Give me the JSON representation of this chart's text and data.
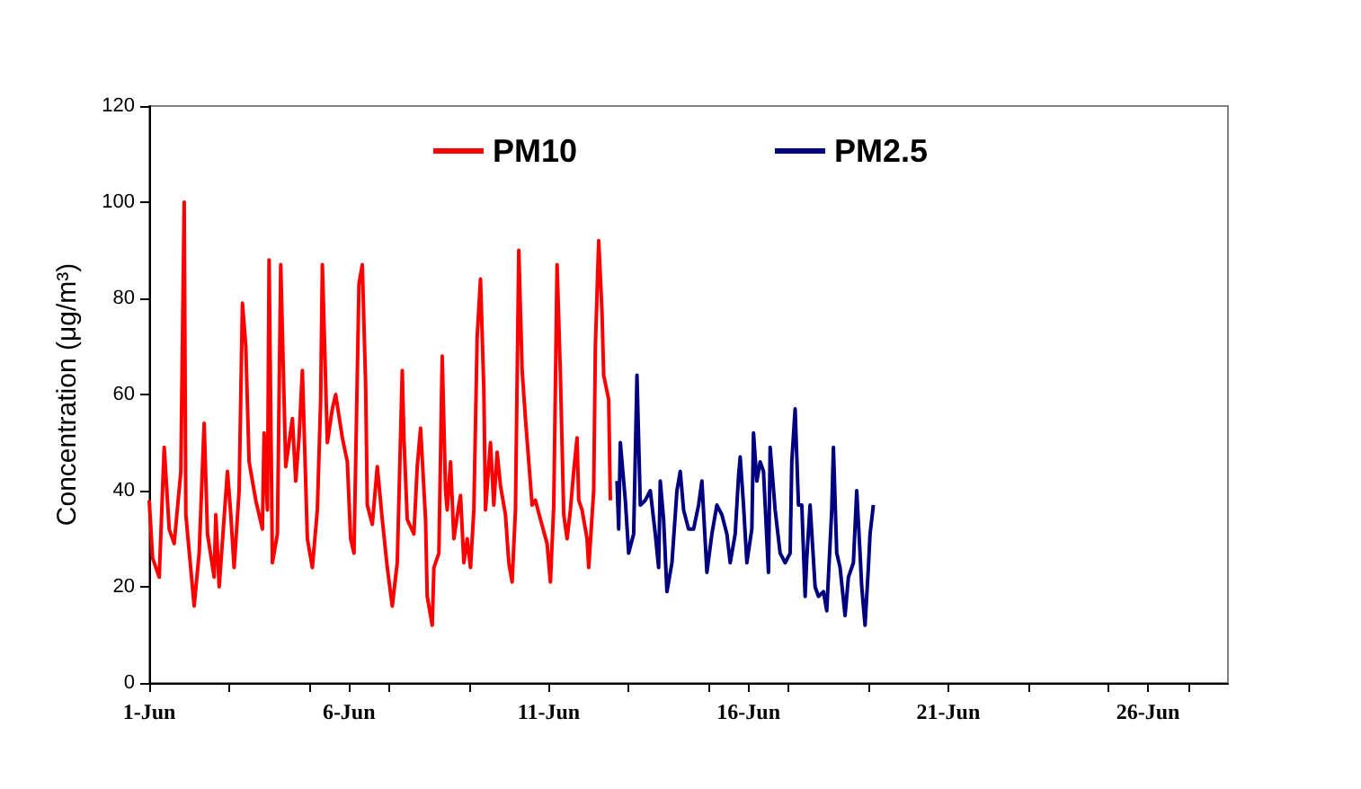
{
  "chart_data": {
    "type": "line",
    "ylabel": "Concentration (μg/m³)",
    "xlim": [
      "--06-01",
      "--06-28"
    ],
    "ylim": [
      0,
      120
    ],
    "yticks": [
      0,
      20,
      40,
      60,
      80,
      100,
      120
    ],
    "xticks": [
      {
        "value": "--06-01",
        "label": "1-Jun"
      },
      {
        "value": "--06-03",
        "label": null
      },
      {
        "value": "--06-05",
        "label": null
      },
      {
        "value": "--06-06",
        "label": "6-Jun"
      },
      {
        "value": "--06-07",
        "label": null
      },
      {
        "value": "--06-09",
        "label": null
      },
      {
        "value": "--06-11",
        "label": "11-Jun"
      },
      {
        "value": "--06-13",
        "label": null
      },
      {
        "value": "--06-15",
        "label": null
      },
      {
        "value": "--06-16",
        "label": "16-Jun"
      },
      {
        "value": "--06-17",
        "label": null
      },
      {
        "value": "--06-19",
        "label": null
      },
      {
        "value": "--06-21",
        "label": "21-Jun"
      },
      {
        "value": "--06-23",
        "label": null
      },
      {
        "value": "--06-25",
        "label": null
      },
      {
        "value": "--06-26",
        "label": "26-Jun"
      },
      {
        "value": "--06-27",
        "label": null
      }
    ],
    "grid": false,
    "legend": "top",
    "marker": "none",
    "line_style": "solid",
    "series": [
      {
        "name": "PM10",
        "color": "#ff0000",
        "x": [
          "--06-01T00:00",
          "--06-01T02:00",
          "--06-01T06:00",
          "--06-01T09:00",
          "--06-01T12:00",
          "--06-01T15:00",
          "--06-01T19:00",
          "--06-01T21:00",
          "--06-01T22:00",
          "--06-02T03:00",
          "--06-02T06:00",
          "--06-02T09:00",
          "--06-02T11:00",
          "--06-02T15:00",
          "--06-02T16:00",
          "--06-02T18:00",
          "--06-02T23:00",
          "--06-03T01:00",
          "--06-03T03:00",
          "--06-03T06:00",
          "--06-03T08:00",
          "--06-03T10:00",
          "--06-03T12:00",
          "--06-03T16:00",
          "--06-03T20:00",
          "--06-03T21:00",
          "--06-03T23:00",
          "--06-04T00:00",
          "--06-04T02:00",
          "--06-04T05:00",
          "--06-04T07:00",
          "--06-04T10:00",
          "--06-04T12:00",
          "--06-04T14:00",
          "--06-04T16:00",
          "--06-04T18:00",
          "--06-04T20:00",
          "--06-04T23:00",
          "--06-05T02:00",
          "--06-05T05:00",
          "--06-05T07:00",
          "--06-05T08:00",
          "--06-05T11:00",
          "--06-05T14:00",
          "--06-05T16:00",
          "--06-05T20:00",
          "--06-05T23:00",
          "--06-06T01:00",
          "--06-06T03:00",
          "--06-06T06:00",
          "--06-06T08:00",
          "--06-06T10:00",
          "--06-06T11:00",
          "--06-06T14:00",
          "--06-06T17:00",
          "--06-06T20:00",
          "--06-06T23:00",
          "--06-07T02:00",
          "--06-07T05:00",
          "--06-07T08:00",
          "--06-07T09:00",
          "--06-07T11:00",
          "--06-07T15:00",
          "--06-07T17:00",
          "--06-07T19:00",
          "--06-07T22:00",
          "--06-07T23:00",
          "--06-08T02:00",
          "--06-08T03:00",
          "--06-08T06:00",
          "--06-08T08:00",
          "--06-08T10:00",
          "--06-08T11:00",
          "--06-08T13:00",
          "--06-08T15:00",
          "--06-08T18:00",
          "--06-08T19:00",
          "--06-08T21:00",
          "--06-08T23:00",
          "--06-09T01:00",
          "--06-09T03:00",
          "--06-09T05:00",
          "--06-09T07:00",
          "--06-09T09:00",
          "--06-09T10:00",
          "--06-09T13:00",
          "--06-09T15:00",
          "--06-09T17:00",
          "--06-09T19:00",
          "--06-09T22:00",
          "--06-10T00:00",
          "--06-10T02:00",
          "--06-10T04:00",
          "--06-10T06:00",
          "--06-10T08:00",
          "--06-10T10:00",
          "--06-10T12:00",
          "--06-10T14:00",
          "--06-10T16:00",
          "--06-10T19:00",
          "--06-10T23:00",
          "--06-11T01:00",
          "--06-11T03:00",
          "--06-11T05:00",
          "--06-11T07:00",
          "--06-11T09:00",
          "--06-11T11:00",
          "--06-11T13:00",
          "--06-11T15:00",
          "--06-11T17:00",
          "--06-11T18:00",
          "--06-11T20:00",
          "--06-11T23:00",
          "--06-12T00:00",
          "--06-12T03:00",
          "--06-12T04:00",
          "--06-12T06:00",
          "--06-12T08:00",
          "--06-12T09:00",
          "--06-12T12:00",
          "--06-12T13:00"
        ],
        "values": [
          38,
          26,
          22,
          49,
          32,
          29,
          44,
          100,
          35,
          16,
          27,
          54,
          31,
          22,
          35,
          20,
          44,
          35,
          24,
          40,
          79,
          70,
          46,
          38,
          32,
          52,
          36,
          88,
          25,
          31,
          87,
          45,
          50,
          55,
          42,
          51,
          65,
          30,
          24,
          36,
          59,
          87,
          50,
          57,
          60,
          51,
          46,
          30,
          27,
          83,
          87,
          62,
          37,
          33,
          45,
          34,
          24,
          16,
          25,
          65,
          51,
          34,
          31,
          45,
          53,
          34,
          18,
          12,
          24,
          27,
          68,
          40,
          36,
          46,
          30,
          37,
          39,
          25,
          30,
          24,
          36,
          72,
          84,
          61,
          36,
          50,
          37,
          48,
          41,
          35,
          25,
          21,
          36,
          90,
          65,
          55,
          46,
          37,
          38,
          34,
          29,
          21,
          37,
          87,
          64,
          35,
          30,
          36,
          44,
          51,
          38,
          36,
          30,
          24,
          40,
          70,
          92,
          77,
          64,
          59,
          38
        ]
      },
      {
        "name": "PM2.5",
        "color": "#000080",
        "x": [
          "--06-12T17:00",
          "--06-12T18:00",
          "--06-12T19:00",
          "--06-12T22:00",
          "--06-13T00:00",
          "--06-13T03:00",
          "--06-13T05:00",
          "--06-13T07:00",
          "--06-13T10:00",
          "--06-13T13:00",
          "--06-13T16:00",
          "--06-13T18:00",
          "--06-13T19:00",
          "--06-13T21:00",
          "--06-13T23:00",
          "--06-14T02:00",
          "--06-14T05:00",
          "--06-14T07:00",
          "--06-14T09:00",
          "--06-14T12:00",
          "--06-14T15:00",
          "--06-14T18:00",
          "--06-14T20:00",
          "--06-14T23:00",
          "--06-15T02:00",
          "--06-15T05:00",
          "--06-15T08:00",
          "--06-15T11:00",
          "--06-15T13:00",
          "--06-15T16:00",
          "--06-15T18:00",
          "--06-15T19:00",
          "--06-15T21:00",
          "--06-15T23:00",
          "--06-16T02:00",
          "--06-16T03:00",
          "--06-16T05:00",
          "--06-16T07:00",
          "--06-16T09:00",
          "--06-16T12:00",
          "--06-16T13:00",
          "--06-16T16:00",
          "--06-16T19:00",
          "--06-16T22:00",
          "--06-17T01:00",
          "--06-17T02:00",
          "--06-17T04:00",
          "--06-17T06:00",
          "--06-17T08:00",
          "--06-17T10:00",
          "--06-17T11:00",
          "--06-17T13:00",
          "--06-17T16:00",
          "--06-17T18:00",
          "--06-17T21:00",
          "--06-17T23:00",
          "--06-18T02:00",
          "--06-18T03:00",
          "--06-18T05:00",
          "--06-18T07:00",
          "--06-18T10:00",
          "--06-18T12:00",
          "--06-18T15:00",
          "--06-18T17:00",
          "--06-18T19:00",
          "--06-18T20:00",
          "--06-18T22:00",
          "--06-19T00:00",
          "--06-19T01:00",
          "--06-19T03:00"
        ],
        "values": [
          42,
          32,
          50,
          38,
          27,
          31,
          64,
          37,
          38,
          40,
          31,
          24,
          42,
          34,
          19,
          25,
          40,
          44,
          36,
          32,
          32,
          37,
          42,
          23,
          31,
          37,
          35,
          31,
          25,
          31,
          43,
          47,
          37,
          25,
          32,
          52,
          42,
          46,
          44,
          23,
          49,
          36,
          27,
          25,
          27,
          46,
          57,
          37,
          37,
          18,
          26,
          37,
          20,
          18,
          19,
          15,
          36,
          49,
          27,
          24,
          14,
          22,
          25,
          40,
          27,
          20,
          12,
          24,
          31,
          37
        ]
      }
    ]
  }
}
